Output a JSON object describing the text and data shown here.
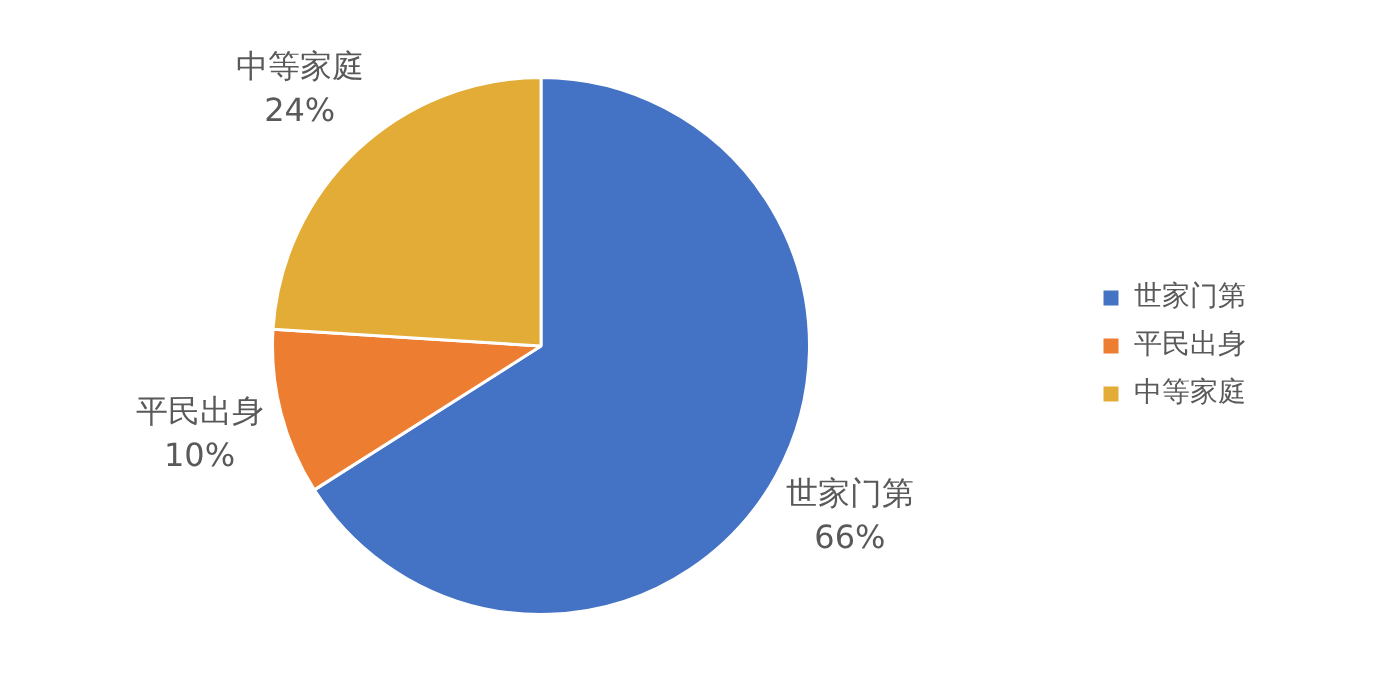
{
  "chart_data": {
    "type": "pie",
    "categories": [
      "世家门第",
      "平民出身",
      "中等家庭"
    ],
    "values": [
      66,
      10,
      24
    ],
    "colors": [
      "#4472c4",
      "#ed7d31",
      "#e2ac36"
    ],
    "value_labels": [
      "66%",
      "10%",
      "24%"
    ],
    "legend": "right"
  }
}
